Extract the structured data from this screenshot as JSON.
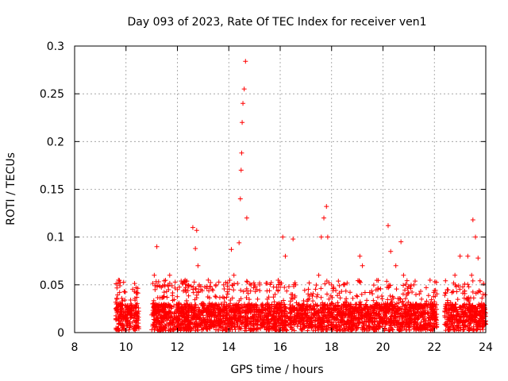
{
  "chart_data": {
    "type": "scatter",
    "title": "Day 093 of 2023, Rate Of TEC Index for receiver ven1",
    "xlabel": "GPS time / hours",
    "ylabel": "ROTI / TECUs",
    "xlim": [
      8,
      24
    ],
    "ylim": [
      0,
      0.3
    ],
    "xticks": [
      8,
      10,
      12,
      14,
      16,
      18,
      20,
      22,
      24
    ],
    "yticks": [
      0,
      0.05,
      0.1,
      0.15,
      0.2,
      0.25,
      0.3
    ],
    "ytick_labels": [
      "0",
      "0.05",
      "0.1",
      "0.15",
      "0.2",
      "0.25",
      "0.3"
    ],
    "grid": true,
    "marker": "+",
    "marker_color": "#ff0000",
    "series": [
      {
        "name": "ROTI ven1",
        "note": "dense cloud of points between ~9.6h and 24h, mostly 0-0.04 TECU, with spikes",
        "x": [
          9.65,
          9.8,
          10.0,
          10.2,
          10.4,
          11.1,
          11.2,
          11.5,
          11.7,
          12.0,
          12.3,
          12.6,
          12.7,
          12.75,
          12.8,
          12.85,
          13.2,
          13.5,
          13.8,
          14.1,
          14.2,
          14.4,
          14.45,
          14.48,
          14.5,
          14.52,
          14.55,
          14.6,
          14.65,
          14.7,
          15.0,
          15.2,
          15.5,
          15.8,
          16.0,
          16.1,
          16.2,
          16.5,
          16.6,
          17.2,
          17.5,
          17.6,
          17.7,
          17.8,
          17.85,
          18.0,
          18.5,
          19.1,
          19.2,
          19.8,
          20.2,
          20.3,
          20.5,
          20.7,
          20.8,
          21.2,
          21.5,
          22.0,
          22.5,
          22.8,
          23.0,
          23.3,
          23.45,
          23.5,
          23.6,
          23.7,
          23.9
        ],
        "y": [
          0.035,
          0.03,
          0.028,
          0.025,
          0.02,
          0.06,
          0.09,
          0.05,
          0.06,
          0.045,
          0.055,
          0.11,
          0.088,
          0.107,
          0.07,
          0.05,
          0.055,
          0.05,
          0.05,
          0.087,
          0.06,
          0.094,
          0.14,
          0.17,
          0.188,
          0.22,
          0.24,
          0.255,
          0.284,
          0.12,
          0.05,
          0.05,
          0.035,
          0.04,
          0.05,
          0.1,
          0.08,
          0.098,
          0.05,
          0.04,
          0.06,
          0.1,
          0.12,
          0.132,
          0.1,
          0.05,
          0.05,
          0.08,
          0.07,
          0.045,
          0.112,
          0.085,
          0.07,
          0.095,
          0.06,
          0.05,
          0.035,
          0.03,
          0.045,
          0.06,
          0.08,
          0.08,
          0.06,
          0.118,
          0.1,
          0.078,
          0.04
        ]
      }
    ]
  }
}
